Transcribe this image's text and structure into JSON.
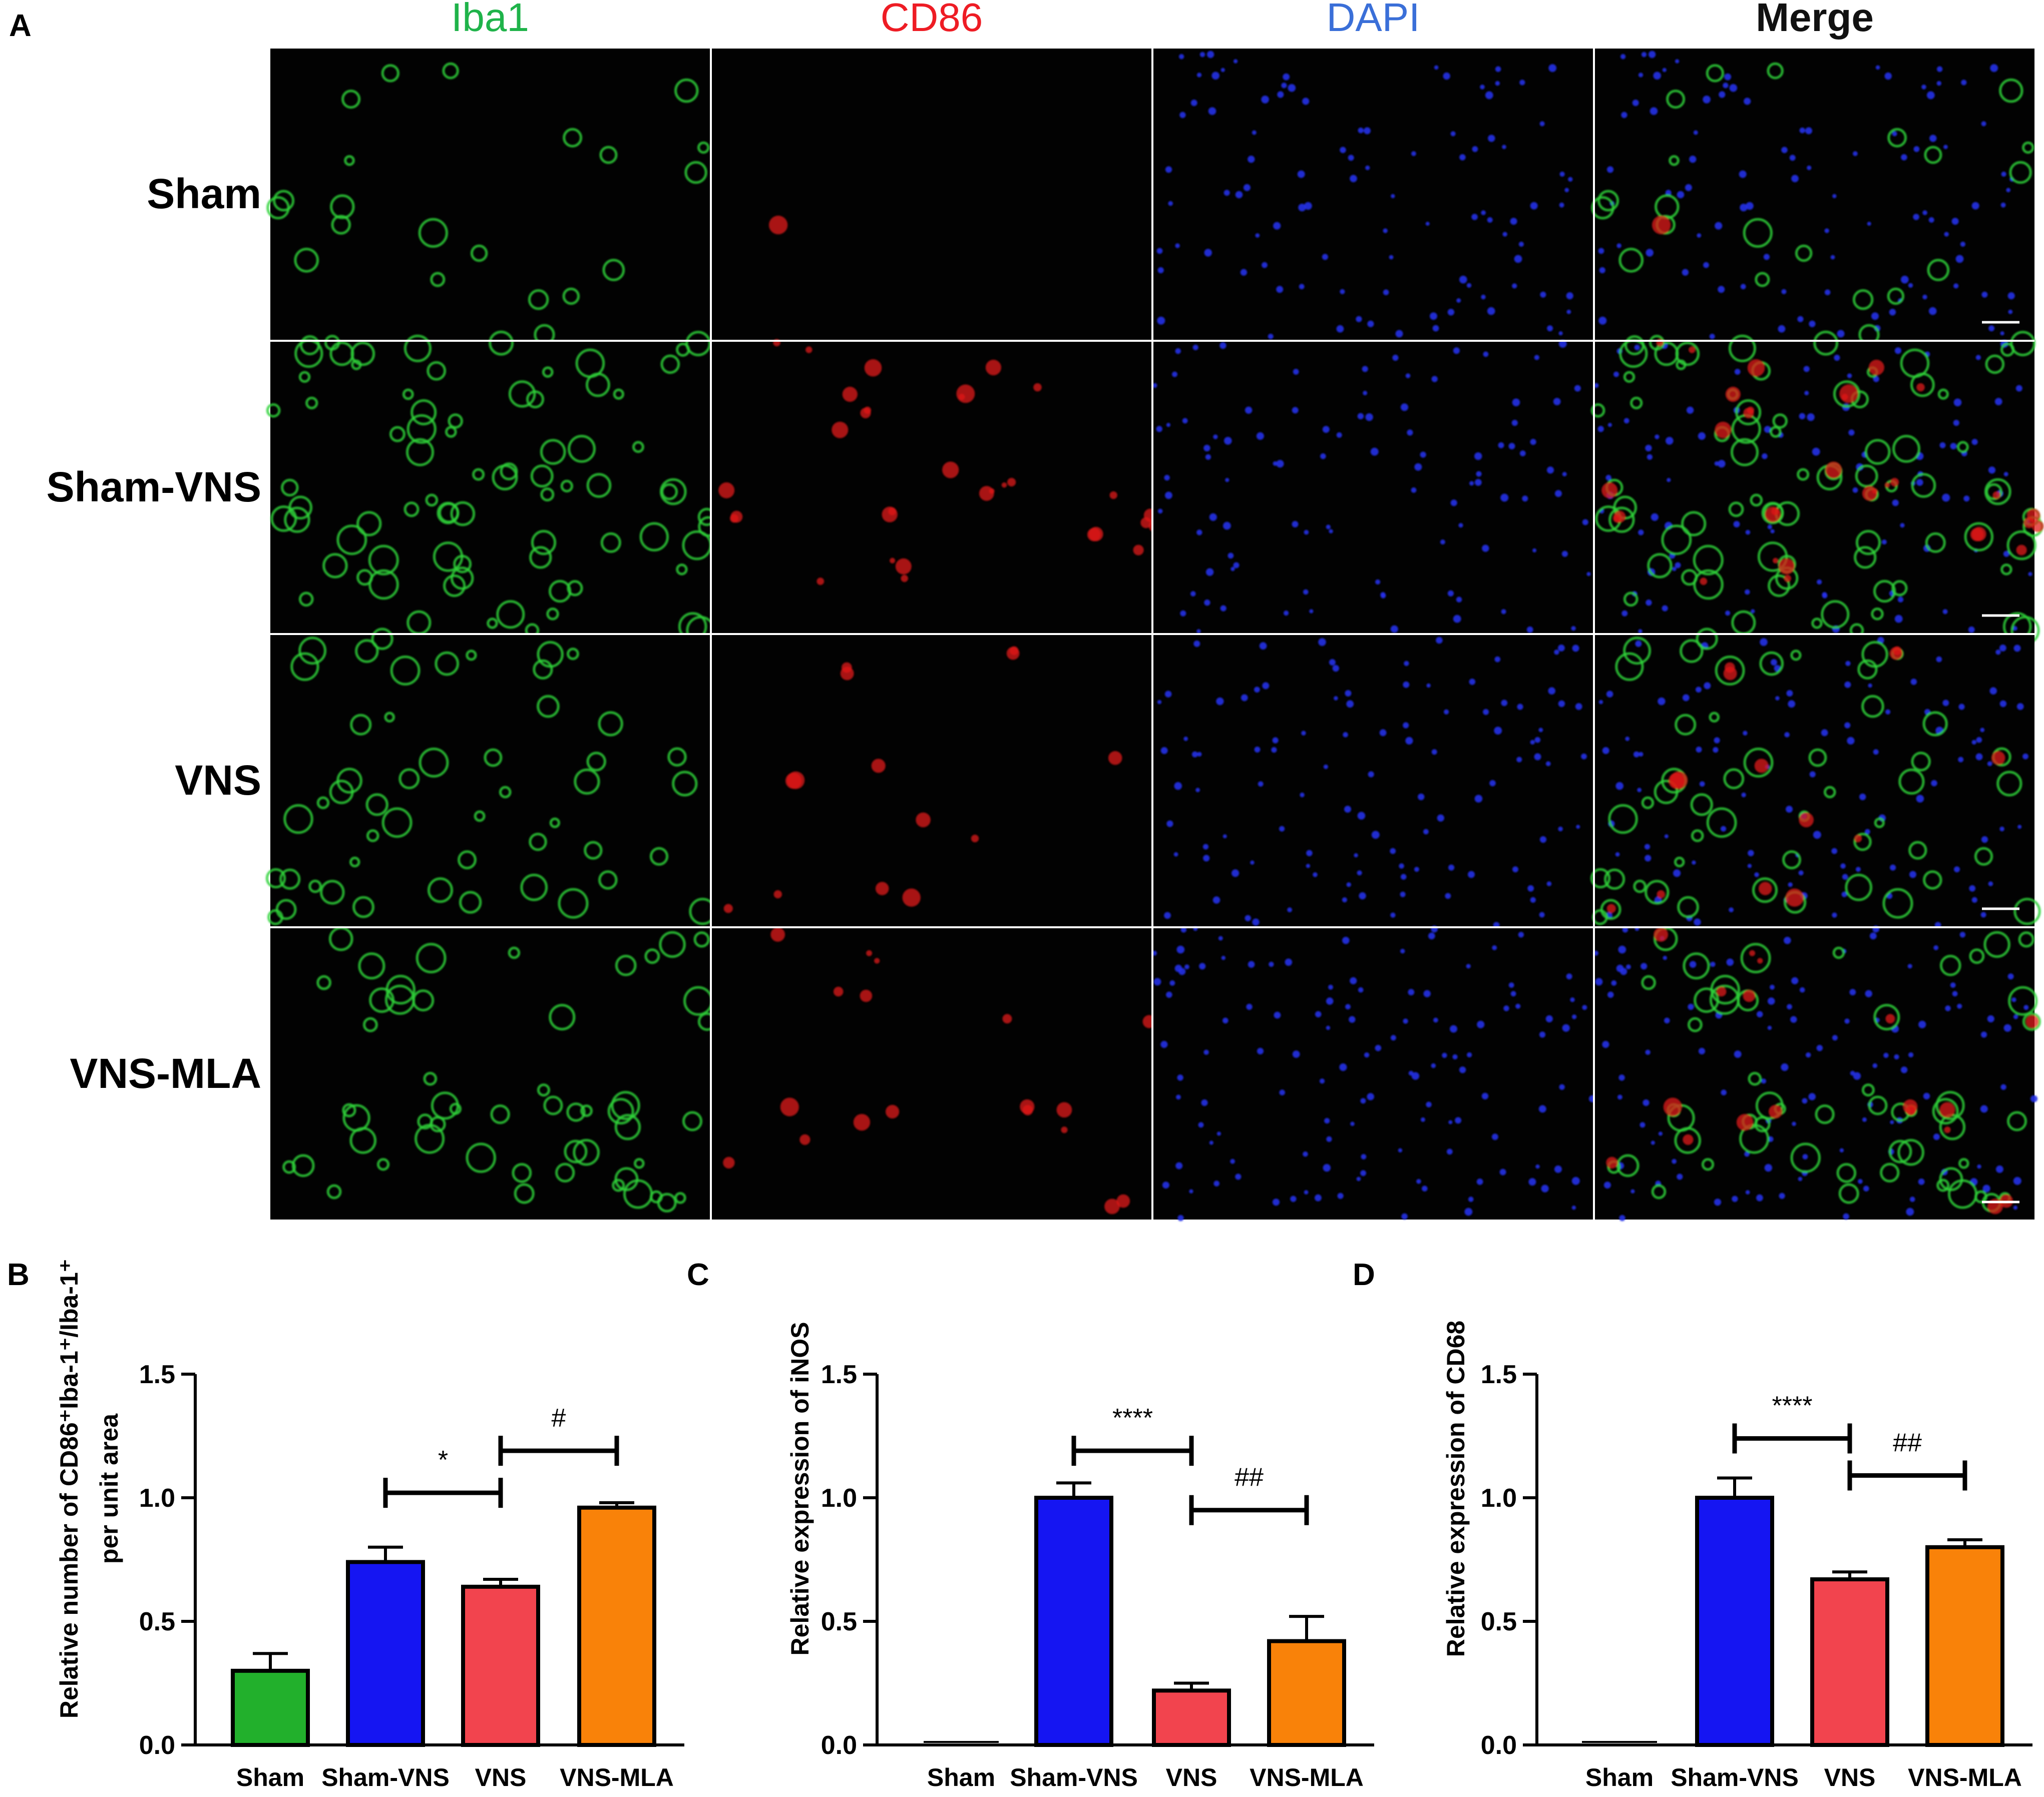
{
  "panel_a": {
    "letter": "A",
    "channels": [
      {
        "label": "Iba1",
        "color": "#1fb34a"
      },
      {
        "label": "CD86",
        "color": "#ee1c24"
      },
      {
        "label": "DAPI",
        "color": "#3a6fd8"
      },
      {
        "label": "Merge",
        "color": "#111111"
      }
    ],
    "groups": [
      "Sham",
      "Sham-VNS",
      "VNS",
      "VNS-MLA"
    ],
    "signal": {
      "iba1": [
        0.15,
        0.95,
        0.55,
        0.6
      ],
      "cd86": [
        0.02,
        0.45,
        0.2,
        0.25
      ],
      "dapi": [
        0.6,
        0.6,
        0.65,
        0.75
      ]
    },
    "image_description": "Immunofluorescence micrographs; each group row shows Iba1 (green), CD86 (red), DAPI (blue) and merged channels with a white scale bar on the merge panel"
  },
  "chart_data": [
    {
      "letter": "B",
      "type": "bar",
      "categories": [
        "Sham",
        "Sham-VNS",
        "VNS",
        "VNS-MLA"
      ],
      "values": [
        0.3,
        0.74,
        0.64,
        0.96
      ],
      "errors": [
        0.07,
        0.06,
        0.03,
        0.02
      ],
      "colors": [
        "#22b02c",
        "#1515f2",
        "#f2444e",
        "#f98209"
      ],
      "ylabel_line1": "Relative number of CD86⁺Iba-1⁺/Iba-1⁺",
      "ylabel_line2": "per unit area",
      "ylim": [
        0,
        1.5
      ],
      "yticks": [
        "0.0",
        "0.5",
        "1.0",
        "1.5"
      ],
      "comparisons": [
        {
          "from": 1,
          "to": 2,
          "level": 1.02,
          "label": "*"
        },
        {
          "from": 2,
          "to": 3,
          "level": 1.19,
          "label": "#"
        }
      ]
    },
    {
      "letter": "C",
      "type": "bar",
      "categories": [
        "Sham",
        "Sham-VNS",
        "VNS",
        "VNS-MLA"
      ],
      "values": [
        0.0,
        1.0,
        0.22,
        0.42
      ],
      "errors": [
        0.0,
        0.06,
        0.03,
        0.1
      ],
      "colors": [
        "#22b02c",
        "#1515f2",
        "#f2444e",
        "#f98209"
      ],
      "ylabel_line1": "Relative expression of iNOS",
      "ylabel_line2": "",
      "ylim": [
        0,
        1.5
      ],
      "yticks": [
        "0.0",
        "0.5",
        "1.0",
        "1.5"
      ],
      "comparisons": [
        {
          "from": 1,
          "to": 2,
          "level": 1.19,
          "label": "****"
        },
        {
          "from": 2,
          "to": 3,
          "level": 0.95,
          "label": "##"
        }
      ]
    },
    {
      "letter": "D",
      "type": "bar",
      "categories": [
        "Sham",
        "Sham-VNS",
        "VNS",
        "VNS-MLA"
      ],
      "values": [
        0.0,
        1.0,
        0.67,
        0.8
      ],
      "errors": [
        0.0,
        0.08,
        0.03,
        0.03
      ],
      "colors": [
        "#22b02c",
        "#1515f2",
        "#f2444e",
        "#f98209"
      ],
      "ylabel_line1": "Relative expression of CD68",
      "ylabel_line2": "",
      "ylim": [
        0,
        1.5
      ],
      "yticks": [
        "0.0",
        "0.5",
        "1.0",
        "1.5"
      ],
      "comparisons": [
        {
          "from": 1,
          "to": 2,
          "level": 1.24,
          "label": "****"
        },
        {
          "from": 2,
          "to": 3,
          "level": 1.09,
          "label": "##"
        }
      ]
    }
  ]
}
